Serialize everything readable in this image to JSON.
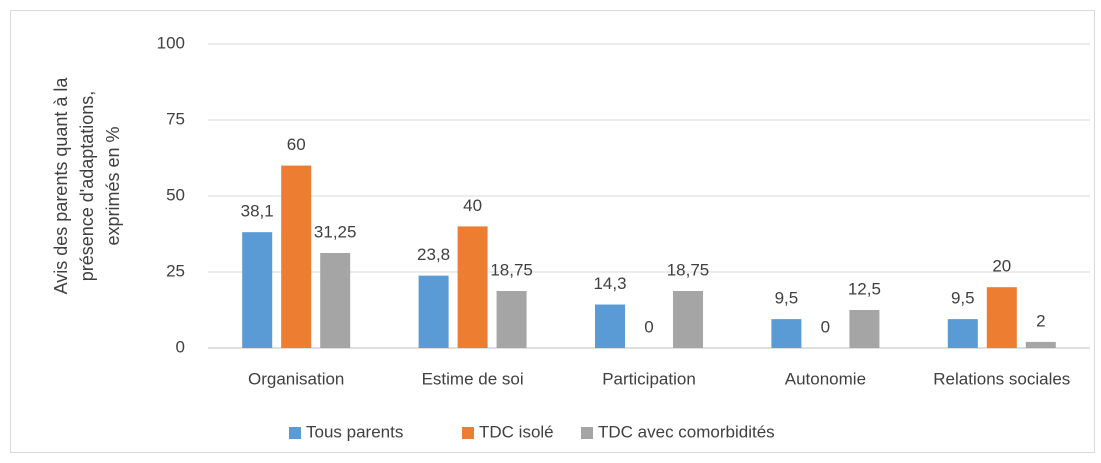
{
  "chart_data": {
    "type": "bar",
    "ylabel": [
      "Avis des parents quant à la",
      "présence d'adaptations,",
      "exprimés en %"
    ],
    "categories": [
      "Organisation",
      "Estime de soi",
      "Participation",
      "Autonomie",
      "Relations sociales"
    ],
    "series": [
      {
        "name": "Tous parents",
        "color": "#5b9bd5",
        "values": [
          38.1,
          23.8,
          14.3,
          9.5,
          9.5
        ],
        "value_labels": [
          "38,1",
          "23,8",
          "14,3",
          "9,5",
          "9,5"
        ]
      },
      {
        "name": "TDC isolé",
        "color": "#ed7d31",
        "values": [
          60,
          40,
          0,
          0,
          20
        ],
        "value_labels": [
          "60",
          "40",
          "0",
          "0",
          "20"
        ]
      },
      {
        "name": "TDC avec comorbidités",
        "color": "#a5a5a5",
        "values": [
          31.25,
          18.75,
          18.75,
          12.5,
          2
        ],
        "value_labels": [
          "31,25",
          "18,75",
          "18,75",
          "12,5",
          "2"
        ]
      }
    ],
    "ylim": [
      0,
      100
    ],
    "yticks": [
      0,
      25,
      50,
      75,
      100
    ],
    "grid": true,
    "legend": "bottom"
  }
}
